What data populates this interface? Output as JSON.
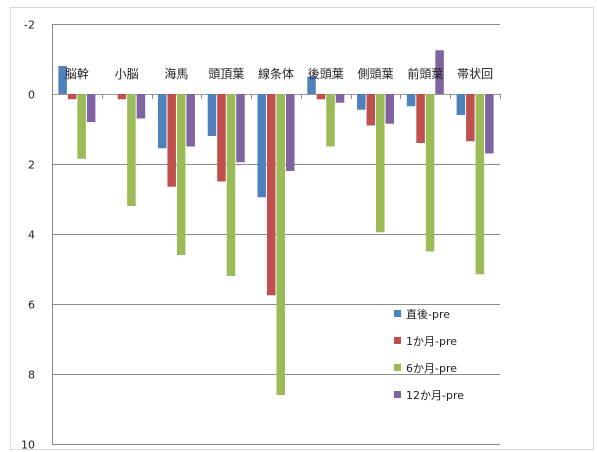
{
  "chart_data": {
    "type": "bar",
    "y_inverted": true,
    "ylim": [
      -2,
      10
    ],
    "ytick_values": [
      -2,
      0,
      2,
      4,
      6,
      8,
      10
    ],
    "ytick_labels": [
      "-2",
      "0",
      "2",
      "4",
      "6",
      "8",
      "10"
    ],
    "grid": true,
    "legend_position": "bottom-right-inside",
    "categories": [
      "脳幹",
      "小脳",
      "海馬",
      "頭頂葉",
      "線条体",
      "後頭葉",
      "側頭葉",
      "前頭葉",
      "帯状回"
    ],
    "series": [
      {
        "name": "直後-pre",
        "color": "#4F81BD",
        "values": [
          -0.8,
          0,
          1.55,
          1.2,
          2.95,
          -0.5,
          0.45,
          0.35,
          0.6
        ]
      },
      {
        "name": "1か月-pre",
        "color": "#C0504D",
        "values": [
          0.15,
          0.15,
          2.65,
          2.5,
          5.75,
          0.15,
          0.9,
          1.4,
          1.35
        ]
      },
      {
        "name": "6か月-pre",
        "color": "#9BBB59",
        "values": [
          1.85,
          3.2,
          4.6,
          5.2,
          8.6,
          1.5,
          3.95,
          4.5,
          5.15
        ]
      },
      {
        "name": "12か月-pre",
        "color": "#8064A2",
        "values": [
          0.8,
          0.7,
          1.5,
          1.95,
          2.2,
          0.25,
          0.85,
          -1.25,
          1.7
        ]
      }
    ]
  }
}
